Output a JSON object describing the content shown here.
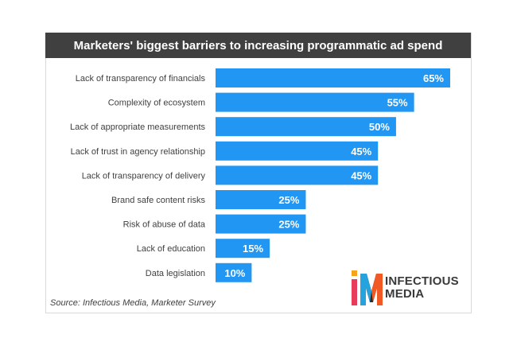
{
  "title": "Marketers' biggest barriers to increasing programmatic ad spend",
  "source": "Source: Infectious Media, Marketer Survey",
  "brand": {
    "line1": "INFECTIOUS",
    "line2": "MEDIA",
    "icon": "infectious-media-logo"
  },
  "colors": {
    "bar": "#2196f3",
    "header": "#404040",
    "label": "#404040",
    "value_label": "#ffffff"
  },
  "chart_data": {
    "type": "bar",
    "orientation": "horizontal",
    "title": "Marketers' biggest barriers to increasing programmatic ad spend",
    "categories": [
      "Lack of transparency of financials",
      "Complexity of ecosystem",
      "Lack of appropriate measurements",
      "Lack of trust in agency relationship",
      "Lack of transparency of delivery",
      "Brand safe content risks",
      "Risk of abuse of data",
      "Lack of education",
      "Data legislation"
    ],
    "values": [
      65,
      55,
      50,
      45,
      45,
      25,
      25,
      15,
      10
    ],
    "data_labels": [
      "65%",
      "55%",
      "50%",
      "45%",
      "45%",
      "25%",
      "25%",
      "15%",
      "10%"
    ],
    "value_unit": "%",
    "xlim": [
      0,
      65
    ],
    "grid": false,
    "legend": "none"
  }
}
